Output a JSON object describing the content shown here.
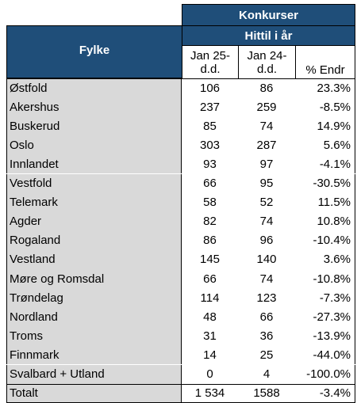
{
  "header": {
    "group": "Konkurser",
    "subgroup": "Hittil i år",
    "region": "Fylke",
    "columns": [
      "Jan 25-\nd.d.",
      "Jan 24-\nd.d.",
      "% Endr"
    ]
  },
  "table": {
    "rows": [
      [
        "Østfold",
        "106",
        "86",
        "23.3%"
      ],
      [
        "Akershus",
        "237",
        "259",
        "-8.5%"
      ],
      [
        "Buskerud",
        "85",
        "74",
        "14.9%"
      ],
      [
        "Oslo",
        "303",
        "287",
        "5.6%"
      ],
      [
        "Innlandet",
        "93",
        "97",
        "-4.1%"
      ],
      [
        "Vestfold",
        "66",
        "95",
        "-30.5%"
      ],
      [
        "Telemark",
        "58",
        "52",
        "11.5%"
      ],
      [
        "Agder",
        "82",
        "74",
        "10.8%"
      ],
      [
        "Rogaland",
        "86",
        "96",
        "-10.4%"
      ],
      [
        "Vestland",
        "145",
        "140",
        "3.6%"
      ],
      [
        "Møre og Romsdal",
        "66",
        "74",
        "-10.8%"
      ],
      [
        "Trøndelag",
        "114",
        "123",
        "-7.3%"
      ],
      [
        "Nordland",
        "48",
        "66",
        "-27.3%"
      ],
      [
        "Troms",
        "31",
        "36",
        "-13.9%"
      ],
      [
        "Finnmark",
        "14",
        "25",
        "-44.0%"
      ],
      [
        "Svalbard + Utland",
        "0",
        "4",
        "-100.0%"
      ]
    ],
    "total": [
      "Totalt",
      "1 534",
      "1588",
      "-3.4%"
    ]
  }
}
